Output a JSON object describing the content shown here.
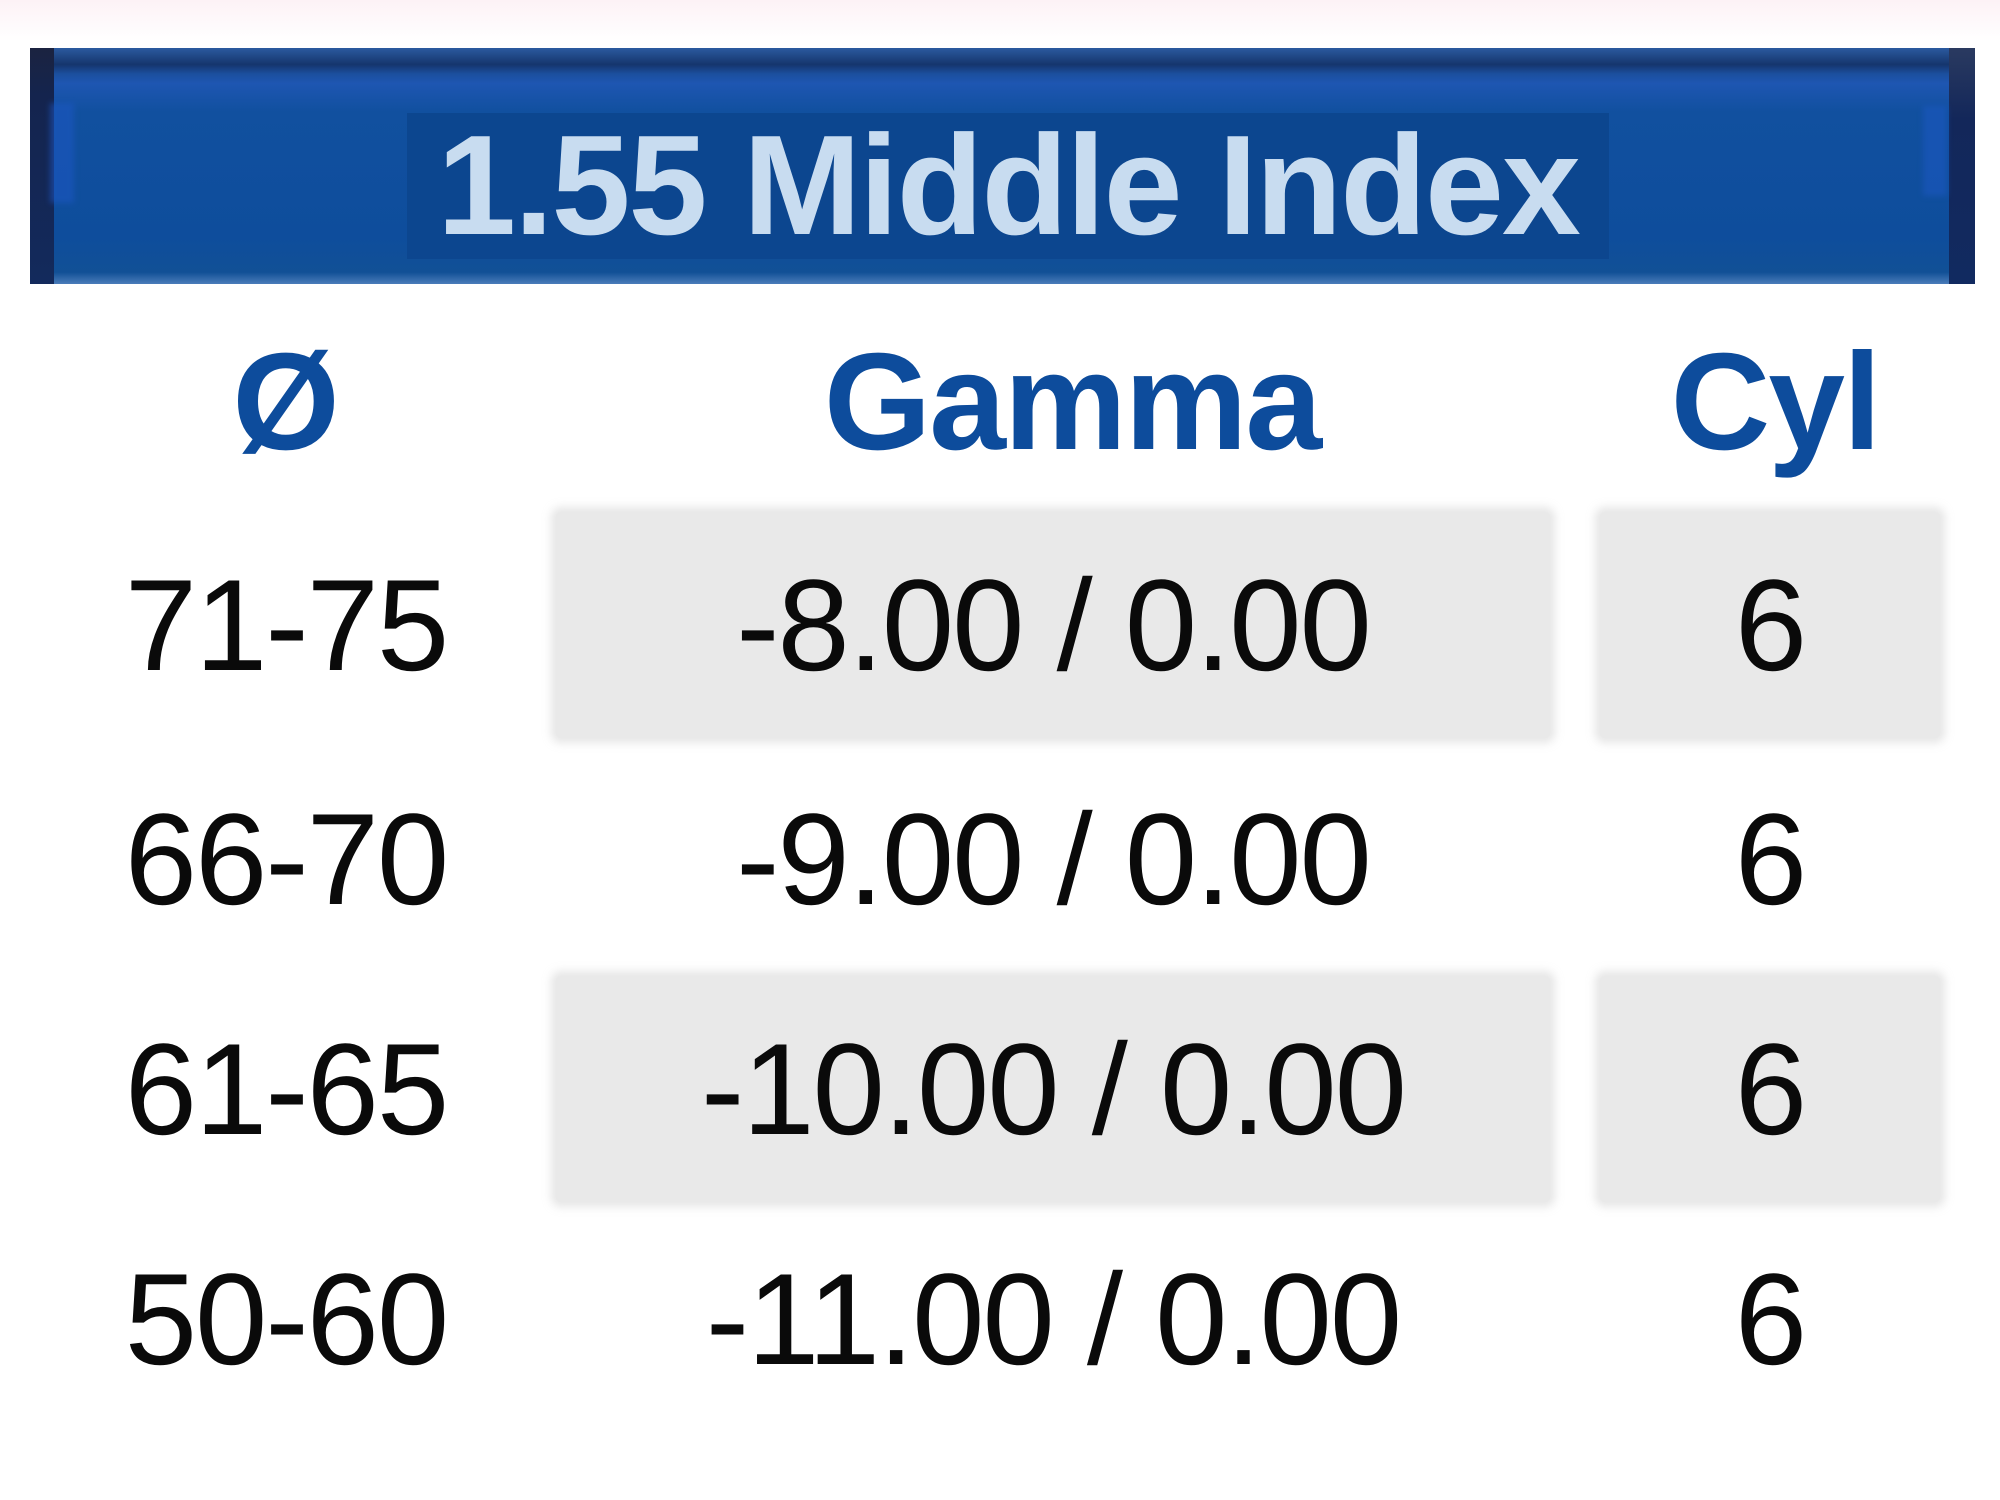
{
  "title": "1.55 Middle Index",
  "columns": {
    "diameter": "Ø",
    "gamma": "Gamma",
    "cyl": "Cyl"
  },
  "rows": [
    {
      "diameter": "71-75",
      "gamma": "-8.00 / 0.00",
      "cyl": "6",
      "shaded": true
    },
    {
      "diameter": "66-70",
      "gamma": "-9.00 / 0.00",
      "cyl": "6",
      "shaded": false
    },
    {
      "diameter": "61-65",
      "gamma": "-10.00 / 0.00",
      "cyl": "6",
      "shaded": true
    },
    {
      "diameter": "50-60",
      "gamma": "-11.00 / 0.00",
      "cyl": "6",
      "shaded": false
    }
  ],
  "colors": {
    "banner_blue": "#0e4d9c",
    "banner_title_highlight": "#0c468f",
    "title_text": "#c8dcf0",
    "header_text": "#0d4c9c",
    "row_shade": "#e9e9e9",
    "body_text": "#0a0a0a"
  }
}
